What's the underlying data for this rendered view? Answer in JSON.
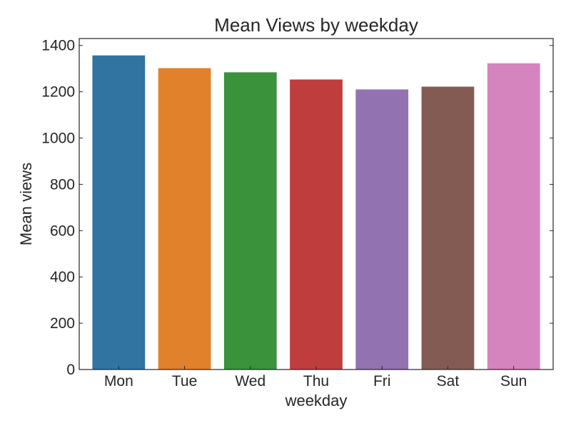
{
  "chart_data": {
    "type": "bar",
    "title": "Mean Views by weekday",
    "xlabel": "weekday",
    "ylabel": "Mean views",
    "categories": [
      "Mon",
      "Tue",
      "Wed",
      "Thu",
      "Fri",
      "Sat",
      "Sun"
    ],
    "values": [
      1357,
      1302,
      1284,
      1253,
      1210,
      1222,
      1323
    ],
    "colors": [
      "#3274a1",
      "#e1812c",
      "#3a923a",
      "#c03d3e",
      "#9372b2",
      "#845b53",
      "#d684bd"
    ],
    "ylim": [
      0,
      1430
    ],
    "yticks": [
      0,
      200,
      400,
      600,
      800,
      1000,
      1200,
      1400
    ],
    "grid": false,
    "legend": "none"
  }
}
